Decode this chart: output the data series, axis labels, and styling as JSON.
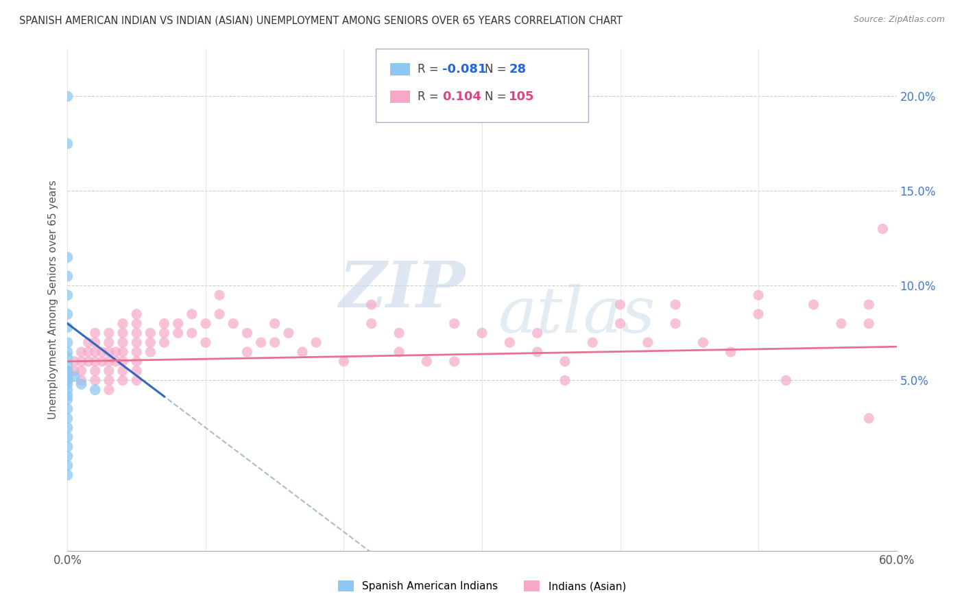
{
  "title": "SPANISH AMERICAN INDIAN VS INDIAN (ASIAN) UNEMPLOYMENT AMONG SENIORS OVER 65 YEARS CORRELATION CHART",
  "source": "Source: ZipAtlas.com",
  "ylabel": "Unemployment Among Seniors over 65 years",
  "xlim": [
    0.0,
    0.6
  ],
  "ylim": [
    -0.04,
    0.225
  ],
  "yticks": [
    0.05,
    0.1,
    0.15,
    0.2
  ],
  "ytick_labels": [
    "5.0%",
    "10.0%",
    "15.0%",
    "20.0%"
  ],
  "color_blue": "#8EC8F0",
  "color_pink": "#F5A8C8",
  "color_blue_line": "#3366BB",
  "color_pink_line": "#E87090",
  "color_gray_line": "#AABBCC",
  "watermark_zip": "ZIP",
  "watermark_atlas": "atlas",
  "blue_scatter": [
    [
      0.0,
      0.2
    ],
    [
      0.0,
      0.175
    ],
    [
      0.0,
      0.115
    ],
    [
      0.0,
      0.105
    ],
    [
      0.0,
      0.095
    ],
    [
      0.0,
      0.085
    ],
    [
      0.0,
      0.078
    ],
    [
      0.0,
      0.07
    ],
    [
      0.0,
      0.065
    ],
    [
      0.0,
      0.062
    ],
    [
      0.0,
      0.058
    ],
    [
      0.0,
      0.055
    ],
    [
      0.0,
      0.052
    ],
    [
      0.0,
      0.05
    ],
    [
      0.0,
      0.048
    ],
    [
      0.0,
      0.045
    ],
    [
      0.0,
      0.042
    ],
    [
      0.0,
      0.04
    ],
    [
      0.0,
      0.035
    ],
    [
      0.0,
      0.03
    ],
    [
      0.0,
      0.025
    ],
    [
      0.0,
      0.02
    ],
    [
      0.0,
      0.015
    ],
    [
      0.0,
      0.01
    ],
    [
      0.0,
      0.005
    ],
    [
      0.0,
      0.0
    ],
    [
      0.005,
      0.052
    ],
    [
      0.01,
      0.048
    ],
    [
      0.02,
      0.045
    ]
  ],
  "pink_scatter": [
    [
      0.0,
      0.055
    ],
    [
      0.0,
      0.052
    ],
    [
      0.0,
      0.05
    ],
    [
      0.005,
      0.06
    ],
    [
      0.005,
      0.055
    ],
    [
      0.01,
      0.065
    ],
    [
      0.01,
      0.06
    ],
    [
      0.01,
      0.055
    ],
    [
      0.01,
      0.05
    ],
    [
      0.015,
      0.07
    ],
    [
      0.015,
      0.065
    ],
    [
      0.015,
      0.06
    ],
    [
      0.02,
      0.075
    ],
    [
      0.02,
      0.07
    ],
    [
      0.02,
      0.065
    ],
    [
      0.02,
      0.06
    ],
    [
      0.02,
      0.055
    ],
    [
      0.02,
      0.05
    ],
    [
      0.025,
      0.065
    ],
    [
      0.025,
      0.06
    ],
    [
      0.03,
      0.075
    ],
    [
      0.03,
      0.07
    ],
    [
      0.03,
      0.065
    ],
    [
      0.03,
      0.06
    ],
    [
      0.03,
      0.055
    ],
    [
      0.03,
      0.05
    ],
    [
      0.03,
      0.045
    ],
    [
      0.035,
      0.065
    ],
    [
      0.035,
      0.06
    ],
    [
      0.04,
      0.08
    ],
    [
      0.04,
      0.075
    ],
    [
      0.04,
      0.07
    ],
    [
      0.04,
      0.065
    ],
    [
      0.04,
      0.06
    ],
    [
      0.04,
      0.055
    ],
    [
      0.04,
      0.05
    ],
    [
      0.05,
      0.085
    ],
    [
      0.05,
      0.08
    ],
    [
      0.05,
      0.075
    ],
    [
      0.05,
      0.07
    ],
    [
      0.05,
      0.065
    ],
    [
      0.05,
      0.06
    ],
    [
      0.05,
      0.055
    ],
    [
      0.05,
      0.05
    ],
    [
      0.06,
      0.075
    ],
    [
      0.06,
      0.07
    ],
    [
      0.06,
      0.065
    ],
    [
      0.07,
      0.08
    ],
    [
      0.07,
      0.075
    ],
    [
      0.07,
      0.07
    ],
    [
      0.08,
      0.08
    ],
    [
      0.08,
      0.075
    ],
    [
      0.09,
      0.085
    ],
    [
      0.09,
      0.075
    ],
    [
      0.1,
      0.08
    ],
    [
      0.1,
      0.07
    ],
    [
      0.11,
      0.095
    ],
    [
      0.11,
      0.085
    ],
    [
      0.12,
      0.08
    ],
    [
      0.13,
      0.075
    ],
    [
      0.13,
      0.065
    ],
    [
      0.14,
      0.07
    ],
    [
      0.15,
      0.08
    ],
    [
      0.15,
      0.07
    ],
    [
      0.16,
      0.075
    ],
    [
      0.17,
      0.065
    ],
    [
      0.18,
      0.07
    ],
    [
      0.2,
      0.06
    ],
    [
      0.22,
      0.09
    ],
    [
      0.22,
      0.08
    ],
    [
      0.24,
      0.075
    ],
    [
      0.24,
      0.065
    ],
    [
      0.26,
      0.06
    ],
    [
      0.28,
      0.08
    ],
    [
      0.28,
      0.06
    ],
    [
      0.3,
      0.075
    ],
    [
      0.32,
      0.07
    ],
    [
      0.34,
      0.075
    ],
    [
      0.34,
      0.065
    ],
    [
      0.36,
      0.06
    ],
    [
      0.36,
      0.05
    ],
    [
      0.38,
      0.07
    ],
    [
      0.4,
      0.09
    ],
    [
      0.4,
      0.08
    ],
    [
      0.42,
      0.07
    ],
    [
      0.44,
      0.09
    ],
    [
      0.44,
      0.08
    ],
    [
      0.46,
      0.07
    ],
    [
      0.48,
      0.065
    ],
    [
      0.5,
      0.095
    ],
    [
      0.5,
      0.085
    ],
    [
      0.52,
      0.05
    ],
    [
      0.54,
      0.09
    ],
    [
      0.56,
      0.08
    ],
    [
      0.58,
      0.09
    ],
    [
      0.58,
      0.08
    ],
    [
      0.58,
      0.03
    ],
    [
      0.59,
      0.13
    ]
  ]
}
